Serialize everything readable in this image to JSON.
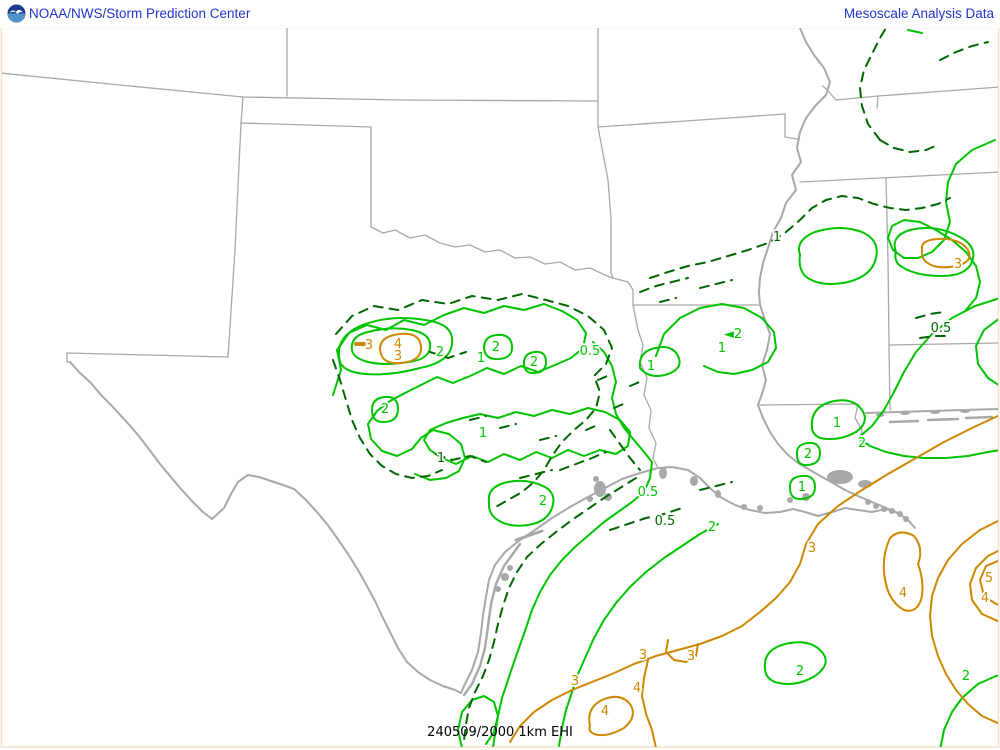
{
  "header": {
    "left_title": "NOAA/NWS/Storm Prediction Center",
    "right_title": "Mesoscale Analysis Data",
    "logo": "noaa-logo"
  },
  "footer": {
    "caption": "240509/2000 1km EHI"
  },
  "map": {
    "description": "EHI contour analysis over southern plains and gulf coast",
    "colors": {
      "blue": "#2233cc",
      "gray": "#a8a8a8",
      "cg": "#00c400",
      "cd": "#006600",
      "co": "#cc8800",
      "frame": "#f6e0cc"
    },
    "contour_labels": [
      [
        "2",
        440,
        352,
        "g"
      ],
      [
        "1",
        481,
        358,
        "g"
      ],
      [
        "2",
        496,
        347,
        "g"
      ],
      [
        "2",
        534,
        362,
        "g"
      ],
      [
        "0.5",
        590,
        351,
        "g"
      ],
      [
        "2",
        385,
        409,
        "g"
      ],
      [
        "1",
        483,
        433,
        "g"
      ],
      [
        "2",
        543,
        501,
        "g"
      ],
      [
        "1",
        651,
        366,
        "g"
      ],
      [
        "◄2",
        733,
        334,
        "g"
      ],
      [
        "1",
        722,
        348,
        "g"
      ],
      [
        "0.5",
        648,
        492,
        "g"
      ],
      [
        "2",
        712,
        527,
        "g"
      ],
      [
        "1",
        837,
        423,
        "g"
      ],
      [
        "2",
        862,
        443,
        "g"
      ],
      [
        "2",
        808,
        454,
        "g"
      ],
      [
        "1",
        802,
        487,
        "g"
      ],
      [
        "2",
        800,
        671,
        "g"
      ],
      [
        "2",
        966,
        676,
        "g"
      ],
      [
        "1",
        441,
        458,
        "d"
      ],
      [
        "0.5",
        665,
        521,
        "d"
      ],
      [
        "0.5",
        941,
        328,
        "d"
      ],
      [
        "1",
        777,
        237,
        "d"
      ],
      [
        "3",
        369,
        345,
        "o"
      ],
      [
        "4",
        398,
        344,
        "o"
      ],
      [
        "3",
        398,
        356,
        "o"
      ],
      [
        "3",
        958,
        264,
        "o"
      ],
      [
        "3",
        812,
        548,
        "o"
      ],
      [
        "3",
        643,
        655,
        "o"
      ],
      [
        "3",
        691,
        656,
        "o"
      ],
      [
        "3",
        575,
        681,
        "o"
      ],
      [
        "4",
        637,
        688,
        "o"
      ],
      [
        "4",
        605,
        711,
        "o"
      ],
      [
        "4",
        903,
        593,
        "o"
      ],
      [
        "5",
        989,
        578,
        "o"
      ],
      [
        "4",
        985,
        598,
        "o"
      ]
    ]
  }
}
